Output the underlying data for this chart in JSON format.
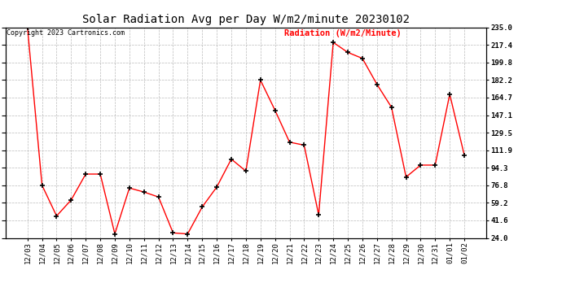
{
  "title": "Solar Radiation Avg per Day W/m2/minute 20230102",
  "copyright_text": "Copyright 2023 Cartronics.com",
  "legend_label": "Radiation (W/m2/Minute)",
  "dates": [
    "12/03",
    "12/04",
    "12/05",
    "12/06",
    "12/07",
    "12/08",
    "12/09",
    "12/10",
    "12/11",
    "12/12",
    "12/13",
    "12/14",
    "12/15",
    "12/16",
    "12/17",
    "12/18",
    "12/19",
    "12/20",
    "12/21",
    "12/22",
    "12/23",
    "12/24",
    "12/25",
    "12/26",
    "12/27",
    "12/28",
    "12/29",
    "12/30",
    "12/31",
    "01/01",
    "01/02"
  ],
  "values": [
    235.0,
    76.8,
    46.0,
    62.0,
    88.0,
    88.0,
    28.0,
    74.0,
    70.0,
    65.0,
    29.0,
    28.0,
    55.0,
    75.0,
    103.0,
    91.0,
    182.2,
    152.0,
    120.0,
    117.0,
    47.0,
    220.0,
    210.0,
    204.0,
    178.0,
    155.0,
    85.0,
    97.0,
    97.0,
    168.0,
    107.0
  ],
  "yticks": [
    24.0,
    41.6,
    59.2,
    76.8,
    94.3,
    111.9,
    129.5,
    147.1,
    164.7,
    182.2,
    199.8,
    217.4,
    235.0
  ],
  "ymin": 24.0,
  "ymax": 235.0,
  "line_color": "red",
  "marker_color": "black",
  "grid_color": "#bbbbbb",
  "bg_color": "#ffffff",
  "title_fontsize": 10,
  "copyright_fontsize": 6,
  "legend_fontsize": 7.5,
  "tick_fontsize": 6.5,
  "axis_label_color": "black"
}
